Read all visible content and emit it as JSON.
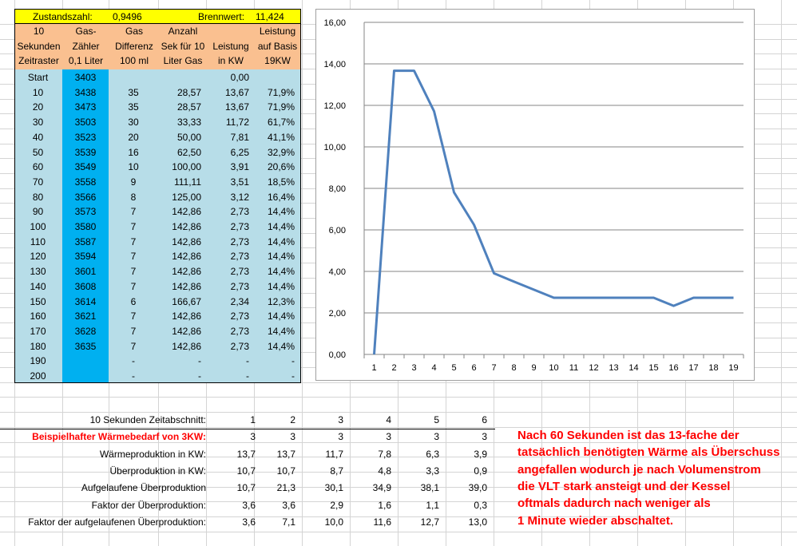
{
  "topbar": {
    "zustand_label": "Zustandszahl:",
    "zustand_value": "0,9496",
    "brenn_label": "Brennwert:",
    "brenn_value": "11,424"
  },
  "header": [
    [
      "10",
      "Sekunden",
      "Zeitraster"
    ],
    [
      "Gas-",
      "Zähler",
      "0,1 Liter"
    ],
    [
      "Gas",
      "Differenz",
      "100 ml"
    ],
    [
      "Anzahl",
      "Sek für 10",
      "Liter Gas"
    ],
    [
      "",
      "Leistung",
      "in KW"
    ],
    [
      "Leistung",
      "auf Basis",
      "19KW"
    ]
  ],
  "rows": [
    [
      "Start",
      "3403",
      "",
      "",
      "0,00",
      ""
    ],
    [
      "10",
      "3438",
      "35",
      "28,57",
      "13,67",
      "71,9%"
    ],
    [
      "20",
      "3473",
      "35",
      "28,57",
      "13,67",
      "71,9%"
    ],
    [
      "30",
      "3503",
      "30",
      "33,33",
      "11,72",
      "61,7%"
    ],
    [
      "40",
      "3523",
      "20",
      "50,00",
      "7,81",
      "41,1%"
    ],
    [
      "50",
      "3539",
      "16",
      "62,50",
      "6,25",
      "32,9%"
    ],
    [
      "60",
      "3549",
      "10",
      "100,00",
      "3,91",
      "20,6%"
    ],
    [
      "70",
      "3558",
      "9",
      "111,11",
      "3,51",
      "18,5%"
    ],
    [
      "80",
      "3566",
      "8",
      "125,00",
      "3,12",
      "16,4%"
    ],
    [
      "90",
      "3573",
      "7",
      "142,86",
      "2,73",
      "14,4%"
    ],
    [
      "100",
      "3580",
      "7",
      "142,86",
      "2,73",
      "14,4%"
    ],
    [
      "110",
      "3587",
      "7",
      "142,86",
      "2,73",
      "14,4%"
    ],
    [
      "120",
      "3594",
      "7",
      "142,86",
      "2,73",
      "14,4%"
    ],
    [
      "130",
      "3601",
      "7",
      "142,86",
      "2,73",
      "14,4%"
    ],
    [
      "140",
      "3608",
      "7",
      "142,86",
      "2,73",
      "14,4%"
    ],
    [
      "150",
      "3614",
      "6",
      "166,67",
      "2,34",
      "12,3%"
    ],
    [
      "160",
      "3621",
      "7",
      "142,86",
      "2,73",
      "14,4%"
    ],
    [
      "170",
      "3628",
      "7",
      "142,86",
      "2,73",
      "14,4%"
    ],
    [
      "180",
      "3635",
      "7",
      "142,86",
      "2,73",
      "14,4%"
    ],
    [
      "190",
      "",
      "-",
      "-",
      "-",
      "-"
    ],
    [
      "200",
      "",
      "-",
      "-",
      "-",
      "-"
    ]
  ],
  "chart_data": {
    "type": "line",
    "x": [
      1,
      2,
      3,
      4,
      5,
      6,
      7,
      8,
      9,
      10,
      11,
      12,
      13,
      14,
      15,
      16,
      17,
      18,
      19
    ],
    "y_labels": [
      "0,00",
      "2,00",
      "4,00",
      "6,00",
      "8,00",
      "10,00",
      "12,00",
      "14,00",
      "16,00"
    ],
    "ylim": [
      0,
      16
    ],
    "series": [
      {
        "values": [
          0,
          13.67,
          13.67,
          11.72,
          7.81,
          6.25,
          3.91,
          3.51,
          3.12,
          2.73,
          2.73,
          2.73,
          2.73,
          2.73,
          2.73,
          2.34,
          2.73,
          2.73,
          2.73
        ],
        "color": "#4f81bd"
      }
    ],
    "grid": "horizontal",
    "legend": "none"
  },
  "bottom": {
    "rows": [
      {
        "label": "10 Sekunden Zeitabschnitt:",
        "values": [
          "1",
          "2",
          "3",
          "4",
          "5",
          "6"
        ],
        "red": false
      },
      {
        "label": "Beispielhafter Wärmebedarf von 3KW:",
        "values": [
          "3",
          "3",
          "3",
          "3",
          "3",
          "3"
        ],
        "red": true
      },
      {
        "label": "Wärmeproduktion in KW:",
        "values": [
          "13,7",
          "13,7",
          "11,7",
          "7,8",
          "6,3",
          "3,9"
        ],
        "red": false
      },
      {
        "label": "Überproduktion in KW:",
        "values": [
          "10,7",
          "10,7",
          "8,7",
          "4,8",
          "3,3",
          "0,9"
        ],
        "red": false
      },
      {
        "label": "Aufgelaufene Überproduktion",
        "values": [
          "10,7",
          "21,3",
          "30,1",
          "34,9",
          "38,1",
          "39,0"
        ],
        "red": false
      },
      {
        "label": "Faktor der Überproduktion:",
        "values": [
          "3,6",
          "3,6",
          "2,9",
          "1,6",
          "1,1",
          "0,3"
        ],
        "red": false
      },
      {
        "label": "Faktor der aufgelaufenen Überproduktion:",
        "values": [
          "3,6",
          "7,1",
          "10,0",
          "11,6",
          "12,7",
          "13,0"
        ],
        "red": false
      }
    ],
    "note": [
      "Nach 60 Sekunden ist das 13-fache der",
      "tatsächlich benötigten Wärme als Überschuss",
      "angefallen wodurch je nach Volumenstrom",
      "die VLT stark ansteigt und der Kessel",
      "oftmals dadurch nach weniger als",
      "1 Minute wieder abschaltet."
    ]
  },
  "colors": {
    "header": "#fac090",
    "data": "#b7dde8",
    "gas_column": "#00b0f0",
    "zustand": "#ffff00",
    "line": "#4f81bd",
    "red_text": "#ff0000"
  }
}
